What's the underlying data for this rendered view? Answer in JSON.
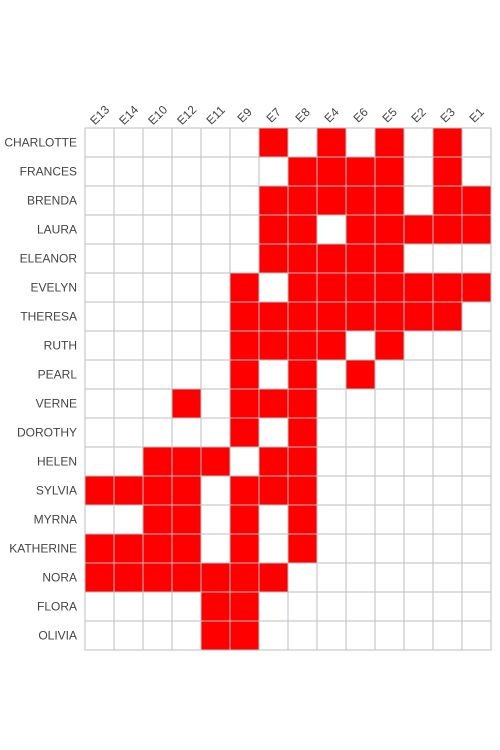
{
  "chart_data": {
    "type": "heatmap",
    "title": "",
    "xlabel": "",
    "ylabel": "",
    "colors": {
      "on": "#ff0000",
      "off": "#ffffff",
      "grid": "#bdbdbd"
    },
    "columns": [
      "E13",
      "E14",
      "E10",
      "E12",
      "E11",
      "E9",
      "E7",
      "E8",
      "E4",
      "E6",
      "E5",
      "E2",
      "E3",
      "E1"
    ],
    "rows": [
      "CHARLOTTE",
      "FRANCES",
      "BRENDA",
      "LAURA",
      "ELEANOR",
      "EVELYN",
      "THERESA",
      "RUTH",
      "PEARL",
      "VERNE",
      "DOROTHY",
      "HELEN",
      "SYLVIA",
      "MYRNA",
      "KATHERINE",
      "NORA",
      "FLORA",
      "OLIVIA"
    ],
    "matrix": [
      [
        0,
        0,
        0,
        0,
        0,
        0,
        1,
        0,
        1,
        0,
        1,
        0,
        1,
        0
      ],
      [
        0,
        0,
        0,
        0,
        0,
        0,
        0,
        1,
        1,
        1,
        1,
        0,
        1,
        0
      ],
      [
        0,
        0,
        0,
        0,
        0,
        0,
        1,
        1,
        1,
        1,
        1,
        0,
        1,
        1
      ],
      [
        0,
        0,
        0,
        0,
        0,
        0,
        1,
        1,
        0,
        1,
        1,
        1,
        1,
        1
      ],
      [
        0,
        0,
        0,
        0,
        0,
        0,
        1,
        1,
        1,
        1,
        1,
        0,
        0,
        0
      ],
      [
        0,
        0,
        0,
        0,
        0,
        1,
        0,
        1,
        1,
        1,
        1,
        1,
        1,
        1
      ],
      [
        0,
        0,
        0,
        0,
        0,
        1,
        1,
        1,
        1,
        1,
        1,
        1,
        1,
        0
      ],
      [
        0,
        0,
        0,
        0,
        0,
        1,
        1,
        1,
        1,
        0,
        1,
        0,
        0,
        0
      ],
      [
        0,
        0,
        0,
        0,
        0,
        1,
        0,
        1,
        0,
        1,
        0,
        0,
        0,
        0
      ],
      [
        0,
        0,
        0,
        1,
        0,
        1,
        1,
        1,
        0,
        0,
        0,
        0,
        0,
        0
      ],
      [
        0,
        0,
        0,
        0,
        0,
        1,
        0,
        1,
        0,
        0,
        0,
        0,
        0,
        0
      ],
      [
        0,
        0,
        1,
        1,
        1,
        0,
        1,
        1,
        0,
        0,
        0,
        0,
        0,
        0
      ],
      [
        1,
        1,
        1,
        1,
        0,
        1,
        1,
        1,
        0,
        0,
        0,
        0,
        0,
        0
      ],
      [
        0,
        0,
        1,
        1,
        0,
        1,
        0,
        1,
        0,
        0,
        0,
        0,
        0,
        0
      ],
      [
        1,
        1,
        1,
        1,
        0,
        1,
        0,
        1,
        0,
        0,
        0,
        0,
        0,
        0
      ],
      [
        1,
        1,
        1,
        1,
        1,
        1,
        1,
        0,
        0,
        0,
        0,
        0,
        0,
        0
      ],
      [
        0,
        0,
        0,
        0,
        1,
        1,
        0,
        0,
        0,
        0,
        0,
        0,
        0,
        0
      ],
      [
        0,
        0,
        0,
        0,
        1,
        1,
        0,
        0,
        0,
        0,
        0,
        0,
        0,
        0
      ]
    ]
  }
}
